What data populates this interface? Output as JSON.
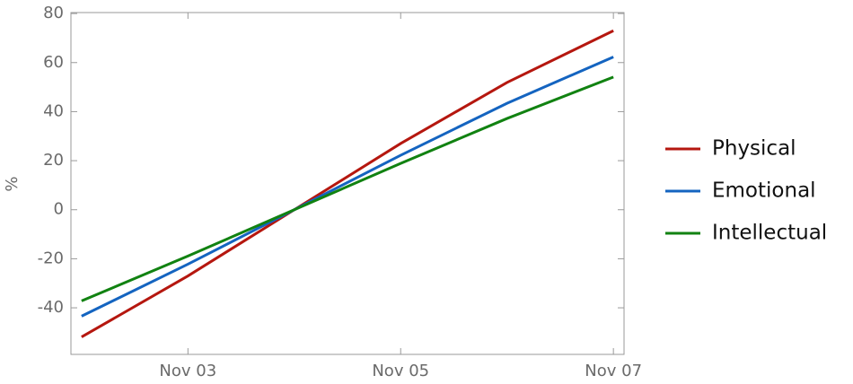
{
  "chart_data": {
    "type": "line",
    "y_label": "%",
    "x": [
      "Nov 02",
      "Nov 03",
      "Nov 04",
      "Nov 05",
      "Nov 06",
      "Nov 07"
    ],
    "xticks": [
      "Nov 03",
      "Nov 05",
      "Nov 07"
    ],
    "series": [
      {
        "name": "Physical",
        "color": "#b5170f",
        "values": [
          -51.9,
          -27.0,
          0,
          27.0,
          51.9,
          73.0
        ]
      },
      {
        "name": "Emotional",
        "color": "#1464c0",
        "values": [
          -43.4,
          -22.2,
          0,
          22.2,
          43.4,
          62.3
        ]
      },
      {
        "name": "Intellectual",
        "color": "#118211",
        "values": [
          -37.2,
          -18.9,
          0,
          18.9,
          37.2,
          54.1
        ]
      }
    ],
    "ylim": [
      -59,
      80.4
    ],
    "yticks": [
      -40,
      -20,
      0,
      20,
      40,
      60,
      80
    ],
    "grid": false
  }
}
